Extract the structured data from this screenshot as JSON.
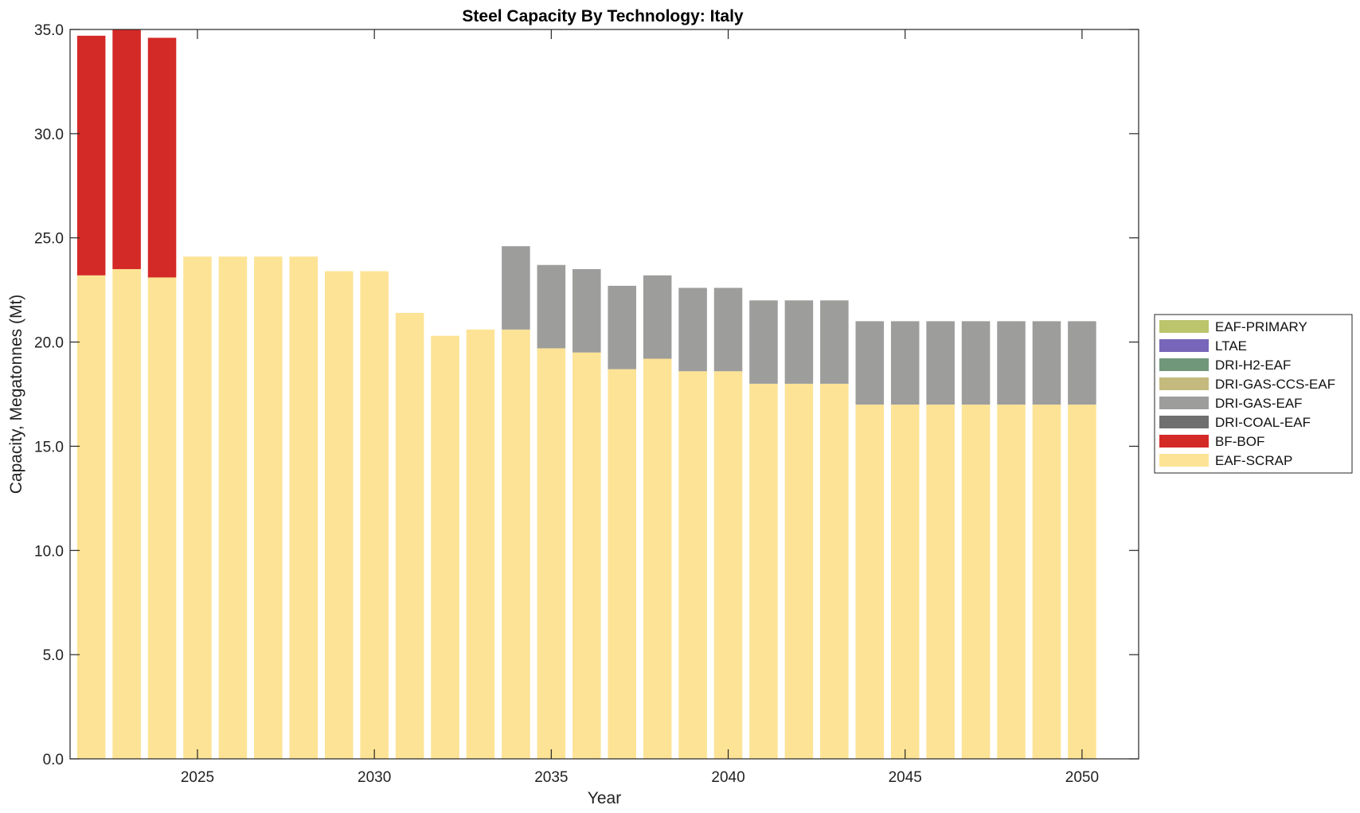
{
  "chart_data": {
    "type": "bar",
    "stacked": true,
    "title": "Steel Capacity By Technology: Italy",
    "xlabel": "Year",
    "ylabel": "Capacity, Megatonnes (Mt)",
    "ylim": [
      0,
      35
    ],
    "xlim": [
      2021.4,
      2051.6
    ],
    "yticks": [
      0,
      5,
      10,
      15,
      20,
      25,
      30,
      35
    ],
    "ytick_labels": [
      "0.0",
      "5.0",
      "10.0",
      "15.0",
      "20.0",
      "25.0",
      "30.0",
      "35.0"
    ],
    "xticks": [
      2025,
      2030,
      2035,
      2040,
      2045,
      2050
    ],
    "xtick_labels": [
      "2025",
      "2030",
      "2035",
      "2040",
      "2045",
      "2050"
    ],
    "grid": false,
    "legend_position": "right",
    "x": [
      2022,
      2023,
      2024,
      2025,
      2026,
      2027,
      2028,
      2029,
      2030,
      2031,
      2032,
      2033,
      2034,
      2035,
      2036,
      2037,
      2038,
      2039,
      2040,
      2041,
      2042,
      2043,
      2044,
      2045,
      2046,
      2047,
      2048,
      2049,
      2050
    ],
    "series": [
      {
        "name": "EAF-SCRAP",
        "color": "#fde395",
        "values": [
          23.2,
          23.5,
          23.1,
          24.1,
          24.1,
          24.1,
          24.1,
          23.4,
          23.4,
          21.4,
          20.3,
          20.6,
          20.6,
          19.7,
          19.5,
          18.7,
          19.2,
          18.6,
          18.6,
          18.0,
          18.0,
          18.0,
          17.0,
          17.0,
          17.0,
          17.0,
          17.0,
          17.0,
          17.0
        ]
      },
      {
        "name": "BF-BOF",
        "color": "#d42a27",
        "values": [
          11.5,
          11.5,
          11.5,
          0,
          0,
          0,
          0,
          0,
          0,
          0,
          0,
          0,
          0,
          0,
          0,
          0,
          0,
          0,
          0,
          0,
          0,
          0,
          0,
          0,
          0,
          0,
          0,
          0,
          0
        ]
      },
      {
        "name": "DRI-COAL-EAF",
        "color": "#6f6f6f",
        "values": [
          0,
          0,
          0,
          0,
          0,
          0,
          0,
          0,
          0,
          0,
          0,
          0,
          0,
          0,
          0,
          0,
          0,
          0,
          0,
          0,
          0,
          0,
          0,
          0,
          0,
          0,
          0,
          0,
          0
        ]
      },
      {
        "name": "DRI-GAS-EAF",
        "color": "#9d9d9c",
        "values": [
          0,
          0,
          0,
          0,
          0,
          0,
          0,
          0,
          0,
          0,
          0,
          0,
          4.0,
          4.0,
          4.0,
          4.0,
          4.0,
          4.0,
          4.0,
          4.0,
          4.0,
          4.0,
          4.0,
          4.0,
          4.0,
          4.0,
          4.0,
          4.0,
          4.0
        ]
      },
      {
        "name": "DRI-GAS-CCS-EAF",
        "color": "#c4ba7d",
        "values": [
          0,
          0,
          0,
          0,
          0,
          0,
          0,
          0,
          0,
          0,
          0,
          0,
          0,
          0,
          0,
          0,
          0,
          0,
          0,
          0,
          0,
          0,
          0,
          0,
          0,
          0,
          0,
          0,
          0
        ]
      },
      {
        "name": "DRI-H2-EAF",
        "color": "#70977a",
        "values": [
          0,
          0,
          0,
          0,
          0,
          0,
          0,
          0,
          0,
          0,
          0,
          0,
          0,
          0,
          0,
          0,
          0,
          0,
          0,
          0,
          0,
          0,
          0,
          0,
          0,
          0,
          0,
          0,
          0
        ]
      },
      {
        "name": "LTAE",
        "color": "#7766b9",
        "values": [
          0,
          0,
          0,
          0,
          0,
          0,
          0,
          0,
          0,
          0,
          0,
          0,
          0,
          0,
          0,
          0,
          0,
          0,
          0,
          0,
          0,
          0,
          0,
          0,
          0,
          0,
          0,
          0,
          0
        ]
      },
      {
        "name": "EAF-PRIMARY",
        "color": "#bcc46c",
        "values": [
          0,
          0,
          0,
          0,
          0,
          0,
          0,
          0,
          0,
          0,
          0,
          0,
          0,
          0,
          0,
          0,
          0,
          0,
          0,
          0,
          0,
          0,
          0,
          0,
          0,
          0,
          0,
          0,
          0
        ]
      }
    ],
    "legend_order": [
      "EAF-PRIMARY",
      "LTAE",
      "DRI-H2-EAF",
      "DRI-GAS-CCS-EAF",
      "DRI-GAS-EAF",
      "DRI-COAL-EAF",
      "BF-BOF",
      "EAF-SCRAP"
    ]
  }
}
